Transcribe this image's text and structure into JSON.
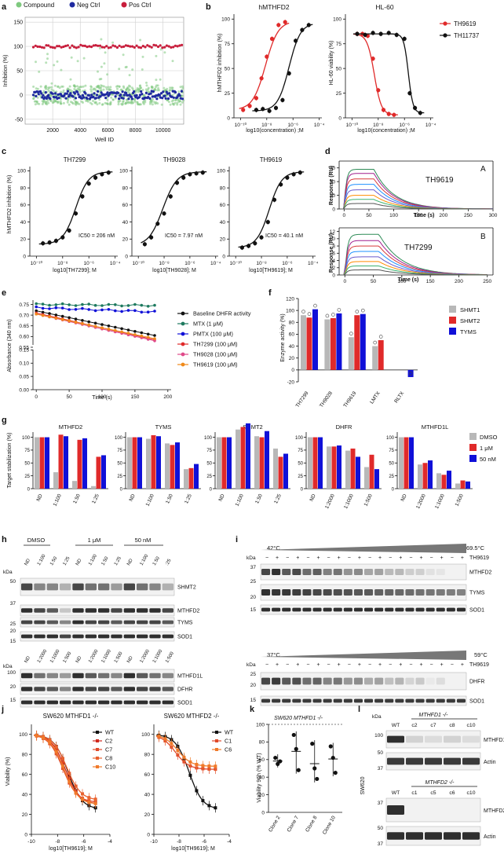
{
  "colors": {
    "compound": "#7fc97f",
    "neg": "#1f2aa0",
    "pos": "#c81e3c",
    "red": "#e02a2a",
    "black": "#111111",
    "gray": "#b8b8b8",
    "blue": "#1010d8",
    "green": "#1e7a5f",
    "pink": "#e04a8a",
    "orange": "#f08a1a"
  },
  "panels": {
    "a": "a",
    "b": "b",
    "c": "c",
    "d": "d",
    "e": "e",
    "f": "f",
    "g": "g",
    "h": "h",
    "i": "i",
    "j": "j",
    "k": "k",
    "l": "l"
  },
  "chart_data": [
    {
      "id": "a",
      "type": "scatter",
      "legend": [
        "Compound",
        "Neg Ctrl",
        "Pos Ctrl"
      ],
      "xlabel": "Well ID",
      "ylabel": "Inhibition (%)",
      "xticks": [
        "2000",
        "4000",
        "6000",
        "8000",
        "10000"
      ],
      "yticks": [
        "150",
        "100",
        "50",
        "0",
        "-50"
      ],
      "xlim": [
        0,
        11500
      ],
      "ylim": [
        -60,
        160
      ],
      "series": [
        {
          "name": "Pos Ctrl",
          "mean": 100
        },
        {
          "name": "Neg Ctrl",
          "mean": 0
        },
        {
          "name": "Compound",
          "mean": 0
        }
      ]
    },
    {
      "id": "b1",
      "type": "line",
      "title": "hMTHFD2",
      "ylabel": "hMTHFD2 inhibition (%)",
      "xlabel": "log10(concentration) ;M",
      "xticks": [
        "10⁻¹⁰",
        "10⁻⁸",
        "10⁻⁶",
        "10⁻⁴"
      ],
      "yticks": [
        "0",
        "25",
        "50",
        "75",
        "100"
      ],
      "xlim": [
        -10,
        -4
      ],
      "ylim": [
        0,
        100
      ],
      "series": [
        {
          "name": "TH9619",
          "x": [
            -9.8,
            -9.3,
            -8.8,
            -8.4,
            -8.0,
            -7.6,
            -7.1,
            -6.6
          ],
          "values": [
            8,
            12,
            20,
            40,
            62,
            80,
            94,
            97
          ]
        },
        {
          "name": "TH11737",
          "x": [
            -8.8,
            -8.3,
            -7.8,
            -7.3,
            -6.8,
            -6.3,
            -5.8,
            -5.3,
            -4.8
          ],
          "values": [
            8,
            9,
            7,
            10,
            18,
            45,
            78,
            89,
            94
          ]
        }
      ]
    },
    {
      "id": "b2",
      "type": "line",
      "title": "HL-60",
      "ylabel": "HL-60 viability (%)",
      "xlabel": "log10(concentration) ;M",
      "xticks": [
        "10⁻¹⁰",
        "10⁻⁸",
        "10⁻⁶",
        "10⁻⁴"
      ],
      "yticks": [
        "0",
        "25",
        "50",
        "75",
        "100"
      ],
      "xlim": [
        -10,
        -4
      ],
      "ylim": [
        0,
        100
      ],
      "legend": [
        "TH9619",
        "TH11737"
      ],
      "series": [
        {
          "name": "TH9619",
          "x": [
            -9.6,
            -9.2,
            -8.8,
            -8.4,
            -8.0,
            -7.6,
            -7.2,
            -6.8
          ],
          "values": [
            85,
            85,
            83,
            60,
            28,
            8,
            4,
            3
          ]
        },
        {
          "name": "TH11737",
          "x": [
            -9.6,
            -9.0,
            -8.4,
            -7.8,
            -7.2,
            -6.6,
            -6.0,
            -5.6,
            -5.2,
            -4.8
          ],
          "values": [
            85,
            84,
            86,
            85,
            86,
            84,
            80,
            25,
            10,
            5
          ]
        }
      ]
    },
    {
      "id": "c1",
      "type": "line",
      "title": "TH7299",
      "ylabel": "hMTHFD2 inhibition (%)",
      "xlabel": "log10[TH7299]; M",
      "annotation": "IC50 = 206 nM",
      "xticks": [
        "10⁻¹⁰",
        "10⁻⁸",
        "10⁻⁶",
        "10⁻⁴"
      ],
      "yticks": [
        "0",
        "20",
        "40",
        "60",
        "80",
        "100"
      ],
      "xlim": [
        -10,
        -4
      ],
      "ylim": [
        0,
        100
      ],
      "series": [
        {
          "name": "TH7299",
          "x": [
            -9.5,
            -9.0,
            -8.5,
            -8.0,
            -7.5,
            -7.0,
            -6.5,
            -6.0,
            -5.5,
            -5.0,
            -4.5
          ],
          "values": [
            15,
            16,
            18,
            22,
            30,
            50,
            70,
            85,
            92,
            96,
            98
          ]
        }
      ]
    },
    {
      "id": "c2",
      "type": "line",
      "title": "TH9028",
      "xlabel": "log10[TH9028]; M",
      "annotation": "IC50 = 7.97 nM",
      "xticks": [
        "10⁻¹⁰",
        "10⁻⁸",
        "10⁻⁶",
        "10⁻⁴"
      ],
      "yticks": [
        "0",
        "20",
        "40",
        "60",
        "80",
        "100"
      ],
      "xlim": [
        -10,
        -4
      ],
      "ylim": [
        0,
        100
      ],
      "series": [
        {
          "name": "TH9028",
          "x": [
            -9.5,
            -9.0,
            -8.5,
            -8.0,
            -7.5,
            -7.0,
            -6.5,
            -6.0,
            -5.5,
            -5.0
          ],
          "values": [
            14,
            22,
            38,
            50,
            70,
            86,
            92,
            96,
            97,
            98
          ]
        }
      ]
    },
    {
      "id": "c3",
      "type": "line",
      "title": "TH9619",
      "xlabel": "log10[TH9619]; M",
      "annotation": "IC50 = 40.1 nM",
      "xticks": [
        "10⁻¹⁰",
        "10⁻⁸",
        "10⁻⁶",
        "10⁻⁴"
      ],
      "yticks": [
        "0",
        "20",
        "40",
        "60",
        "80",
        "100"
      ],
      "xlim": [
        -10,
        -4
      ],
      "ylim": [
        0,
        100
      ],
      "series": [
        {
          "name": "TH9619",
          "x": [
            -9.5,
            -9.0,
            -8.5,
            -8.0,
            -7.5,
            -7.0,
            -6.5,
            -6.0,
            -5.5,
            -5.0
          ],
          "values": [
            10,
            12,
            15,
            22,
            40,
            66,
            84,
            92,
            96,
            98
          ]
        }
      ]
    },
    {
      "id": "d1",
      "type": "line",
      "title": "TH9619",
      "tag": "A",
      "ylabel": "Response (RU)",
      "xlabel": "Time (s)",
      "xticks": [
        "0",
        "50",
        "100",
        "150",
        "200",
        "250",
        "300"
      ],
      "yticks": [
        "0",
        "10",
        "20",
        "30"
      ],
      "xlim": [
        -10,
        300
      ],
      "ylim": [
        0,
        35
      ],
      "plateaus": [
        29,
        26,
        22,
        18,
        14,
        10,
        7,
        4
      ]
    },
    {
      "id": "d2",
      "type": "line",
      "title": "TH7299",
      "tag": "B",
      "ylabel": "Response (RU)",
      "xlabel": "Time (s)",
      "xticks": [
        "0",
        "50",
        "100",
        "150",
        "200",
        "250"
      ],
      "yticks": [
        "0",
        "2",
        "4",
        "6",
        "8",
        "10",
        "12"
      ],
      "xlim": [
        -10,
        260
      ],
      "ylim": [
        0,
        13
      ],
      "plateaus": [
        11.2,
        9.5,
        8,
        6.5,
        5,
        3.7,
        2.5,
        1.4
      ]
    },
    {
      "id": "e",
      "type": "line",
      "ylabel": "Absorbance (340 nm)",
      "xlabel": "Time (s)",
      "xticks": [
        "0",
        "50",
        "100",
        "150",
        "200"
      ],
      "yticks": [
        "0.75",
        "0.70",
        "0.65",
        "0.60",
        "0.55",
        "0.15",
        "0.10",
        "0.05",
        "0.00"
      ],
      "legend": [
        "Baseline DHFR activity",
        "MTX (1 μM)",
        "PMTX (100 μM)",
        "TH7299 (100 μM)",
        "TH9028 (100 μM)",
        "TH9619 (100 μM)"
      ],
      "series": [
        {
          "name": "Baseline DHFR activity",
          "start": 0.72,
          "end": 0.605
        },
        {
          "name": "MTX (1 μM)",
          "start": 0.75,
          "end": 0.745
        },
        {
          "name": "PMTX (100 μM)",
          "start": 0.735,
          "end": 0.715
        },
        {
          "name": "TH7299 (100 μM)",
          "start": 0.71,
          "end": 0.585
        },
        {
          "name": "TH9028 (100 μM)",
          "start": 0.705,
          "end": 0.58
        },
        {
          "name": "TH9619 (100 μM)",
          "start": 0.705,
          "end": 0.59
        }
      ]
    },
    {
      "id": "f",
      "type": "bar",
      "ylabel": "Enzyme activity (%)",
      "categories": [
        "TH7299",
        "TH9028",
        "TH9619",
        "LMTX",
        "RLTX"
      ],
      "yticks": [
        "120",
        "100",
        "80",
        "60",
        "40",
        "20",
        "0",
        "-20"
      ],
      "ylim": [
        -20,
        120
      ],
      "legend": [
        "SHMT1",
        "SHMT2",
        "TYMS"
      ],
      "series": [
        {
          "name": "SHMT1",
          "values": [
            92,
            85,
            55,
            40,
            0
          ]
        },
        {
          "name": "SHMT2",
          "values": [
            88,
            87,
            92,
            50,
            0
          ]
        },
        {
          "name": "TYMS",
          "values": [
            102,
            95,
            94,
            0,
            -12
          ]
        }
      ]
    },
    {
      "id": "g",
      "type": "bar",
      "ylabel": "Target stabilization (%)",
      "legend": [
        "DMSO",
        "1 μM",
        "50 nM"
      ],
      "yticks": [
        "0",
        "25",
        "50",
        "75",
        "100"
      ],
      "ylim": [
        0,
        110
      ],
      "subplots": [
        {
          "title": "MTHFD2",
          "categories": [
            "ND",
            "1:100",
            "1:50",
            "1:25"
          ],
          "series": [
            [
              100,
              32,
              15,
              5
            ],
            [
              100,
              105,
              95,
              62
            ],
            [
              100,
              102,
              98,
              65
            ]
          ]
        },
        {
          "title": "TYMS",
          "categories": [
            "ND",
            "1:100",
            "1:50",
            "1:25"
          ],
          "series": [
            [
              100,
              97,
              88,
              38
            ],
            [
              100,
              104,
              85,
              40
            ],
            [
              100,
              102,
              90,
              48
            ]
          ]
        },
        {
          "title": "SHMT2",
          "categories": [
            "ND",
            "1:100",
            "1:50",
            "1:25"
          ],
          "series": [
            [
              100,
              115,
              102,
              78
            ],
            [
              100,
              120,
              100,
              62
            ],
            [
              100,
              127,
              112,
              68
            ]
          ]
        },
        {
          "title": "DHFR",
          "categories": [
            "ND",
            "1:2000",
            "1:1000",
            "1:500"
          ],
          "series": [
            [
              100,
              82,
              74,
              42
            ],
            [
              100,
              82,
              78,
              66
            ],
            [
              100,
              84,
              62,
              38
            ]
          ]
        },
        {
          "title": "MTHFD1L",
          "categories": [
            "ND",
            "1:2000",
            "1:1000",
            "1:500"
          ],
          "series": [
            [
              100,
              47,
              30,
              10
            ],
            [
              100,
              50,
              27,
              16
            ],
            [
              100,
              55,
              35,
              14
            ]
          ]
        }
      ]
    },
    {
      "id": "j1",
      "type": "line",
      "title": "SW620 MTHFD1 -/-",
      "ylabel": "Viability (%)",
      "xlabel": "log10[TH9619]; M",
      "xticks": [
        "-10",
        "-8",
        "-6",
        "-4"
      ],
      "yticks": [
        "0",
        "20",
        "40",
        "60",
        "80",
        "100"
      ],
      "xlim": [
        -10,
        -4
      ],
      "ylim": [
        0,
        110
      ],
      "legend": [
        "WT",
        "C2",
        "C7",
        "C8",
        "C10"
      ]
    },
    {
      "id": "j2",
      "type": "line",
      "title": "SW620 MTHFD2 -/-",
      "xlabel": "log10[TH9619]; M",
      "xticks": [
        "-10",
        "-8",
        "-6",
        "-4"
      ],
      "yticks": [
        "0",
        "20",
        "40",
        "60",
        "80",
        "100"
      ],
      "xlim": [
        -10,
        -4
      ],
      "ylim": [
        0,
        110
      ],
      "legend": [
        "WT",
        "C1",
        "C6"
      ]
    },
    {
      "id": "k",
      "type": "scatter",
      "title": "SW620 MTHFD1 -/-",
      "ylabel": "Viability 96h (% WT)",
      "categories": [
        "Clone 2",
        "Clone 7",
        "Clone 8",
        "Clone 10"
      ],
      "yticks": [
        "0",
        "20",
        "40",
        "60",
        "80",
        "100"
      ],
      "ylim": [
        0,
        100
      ],
      "values": [
        [
          62,
          55,
          58
        ],
        [
          88,
          72,
          48
        ],
        [
          78,
          50,
          38
        ],
        [
          75,
          62,
          45
        ]
      ]
    }
  ],
  "blots": {
    "h_groups": [
      "DMSO",
      "1 μM",
      "50 nM"
    ],
    "h_lanes_top": [
      "ND",
      "1:100",
      "1:50",
      "1:25",
      "ND",
      "1:100",
      "1:50",
      "1:25",
      "ND",
      "1:100",
      "1:50",
      ":25"
    ],
    "h_lanes_bottom": [
      "ND",
      "1:2000",
      "1:1000",
      "1:500",
      "ND",
      "1:2000",
      "1:1000",
      "1:500",
      "ND",
      "1:2000",
      "1:1000",
      "1:500"
    ],
    "h_labels_top": [
      "SHMT2",
      "MTHFD2",
      "TYMS",
      "SOD1"
    ],
    "h_labels_bottom": [
      "MTHFD1L",
      "DFHR",
      "SOD1"
    ],
    "h_kda_top": [
      "50",
      "37",
      "25",
      "20",
      "15"
    ],
    "h_kda_bottom": [
      "100",
      "20",
      "15"
    ],
    "i_temp1_start": "42°C",
    "i_temp1_end": "69.5°C",
    "i_temp2_start": "37°C",
    "i_temp2_end": "59°C",
    "i_compound": "TH9619",
    "i_signs": [
      "−",
      "+",
      "−",
      "+",
      "−",
      "+",
      "−",
      "+",
      "−",
      "+",
      "−",
      "+",
      "−",
      "+",
      "−",
      "+",
      "−",
      "+",
      "−",
      "+"
    ],
    "i_labels_top": [
      "MTHFD2",
      "TYMS",
      "SOD1"
    ],
    "i_labels_bottom": [
      "DHFR",
      "SOD1"
    ],
    "i_kda_top": [
      "37",
      "25",
      "20",
      "15"
    ],
    "i_kda_bottom": [
      "25",
      "20",
      "15"
    ],
    "kda": "kDa",
    "l_genotype1": "MTHFD1 -/-",
    "l_genotype2": "MTHFD2 -/-",
    "l_lanes1": [
      "WT",
      "c2",
      "c7",
      "c8",
      "c10"
    ],
    "l_lanes2": [
      "WT",
      "c1",
      "c5",
      "c6",
      "c10"
    ],
    "l_labels1": [
      "MTHFD1",
      "Actin"
    ],
    "l_labels2": [
      "MTHFD2",
      "Actin"
    ],
    "l_kda1": [
      "100",
      "50",
      "37"
    ],
    "l_kda2": [
      "37",
      "50",
      "37"
    ],
    "l_cell": "SW620"
  }
}
